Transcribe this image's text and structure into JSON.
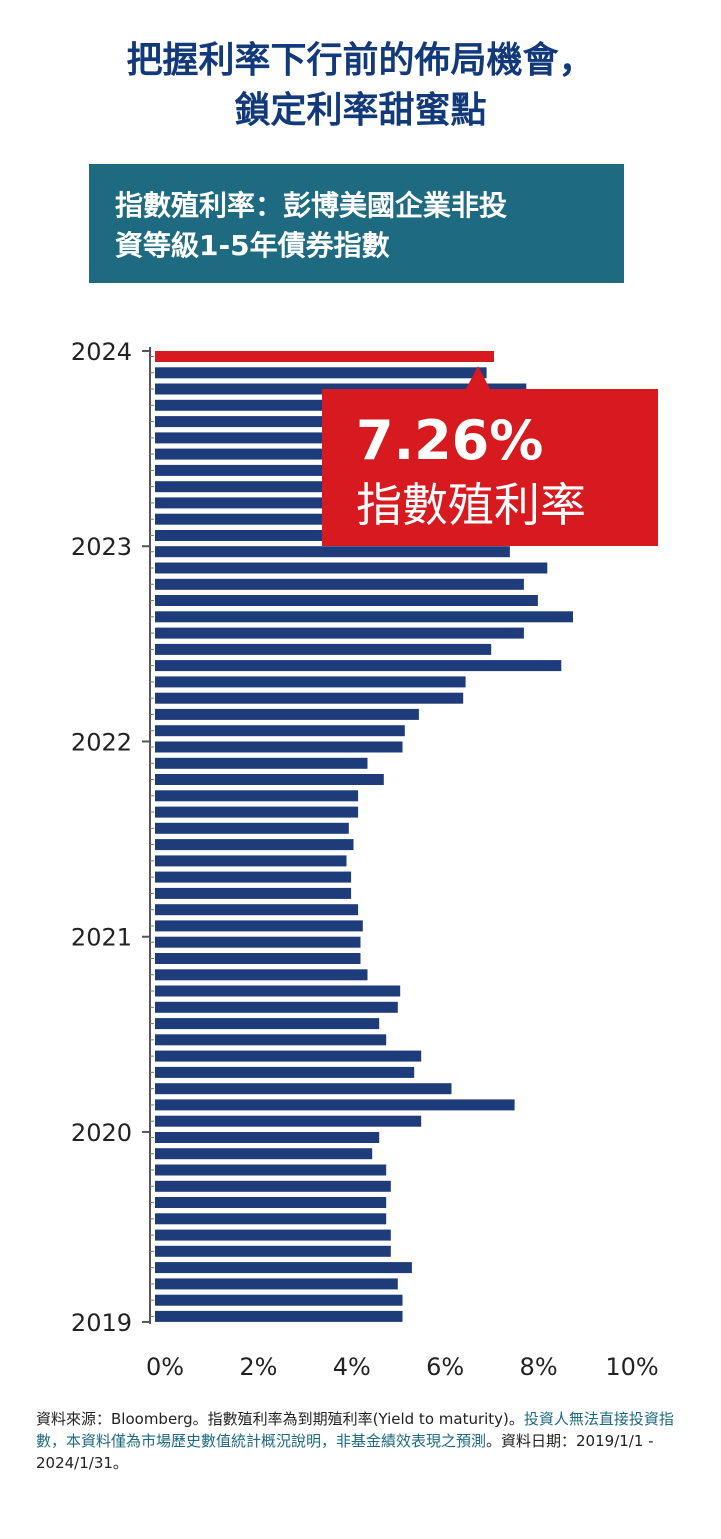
{
  "title": {
    "line1": "把握利率下行前的佈局機會，",
    "line2": "鎖定利率甜蜜點"
  },
  "subtitle": {
    "line1": "指數殖利率：彭博美國企業非投",
    "line2": "資等級1-5年債券指數"
  },
  "callout": {
    "value": "7.26%",
    "label": "指數殖利率"
  },
  "footnote": {
    "part1": "資料來源：Bloomberg。指數殖利率為到期殖利率(Yield to maturity)。",
    "part2": "投資人無法直接投資指數，本資料僅為市場歷史數值統計概況說明，非基金績效表現之預測",
    "part3": "。資料日期：2019/1/1 - 2024/1/31。"
  },
  "colors": {
    "title": "#123a7a",
    "bar": "#1f3c7a",
    "highlight": "#d71920",
    "subtitle_bg": "#1e6a80"
  },
  "chart_data": {
    "type": "bar",
    "orientation": "horizontal",
    "title": "指數殖利率：彭博美國企業非投資等級1-5年債券指數",
    "xlabel": "",
    "ylabel": "",
    "x_unit": "%",
    "xlim": [
      0,
      10
    ],
    "x_ticks": [
      "0%",
      "2%",
      "4%",
      "6%",
      "8%",
      "10%"
    ],
    "y_ticks": [
      "2024",
      "2023",
      "2022",
      "2021",
      "2020",
      "2019"
    ],
    "grid": false,
    "order": "newest-first",
    "highlight": {
      "label": "7.26%",
      "value": 7.26,
      "period": "2024/1"
    },
    "values": [
      7.26,
      7.1,
      7.95,
      7.5,
      7.3,
      7.1,
      7.2,
      7.3,
      7.5,
      7.6,
      7.4,
      7.6,
      7.6,
      8.4,
      7.9,
      8.2,
      8.95,
      7.9,
      7.2,
      8.7,
      6.65,
      6.6,
      5.65,
      5.35,
      5.3,
      4.55,
      4.9,
      4.35,
      4.35,
      4.15,
      4.25,
      4.1,
      4.2,
      4.2,
      4.35,
      4.45,
      4.4,
      4.4,
      4.55,
      5.25,
      5.2,
      4.8,
      4.95,
      5.7,
      5.55,
      6.35,
      7.7,
      5.7,
      4.8,
      4.65,
      4.95,
      5.05,
      4.95,
      4.95,
      5.05,
      5.05,
      5.5,
      5.2,
      5.3,
      5.3
    ]
  }
}
